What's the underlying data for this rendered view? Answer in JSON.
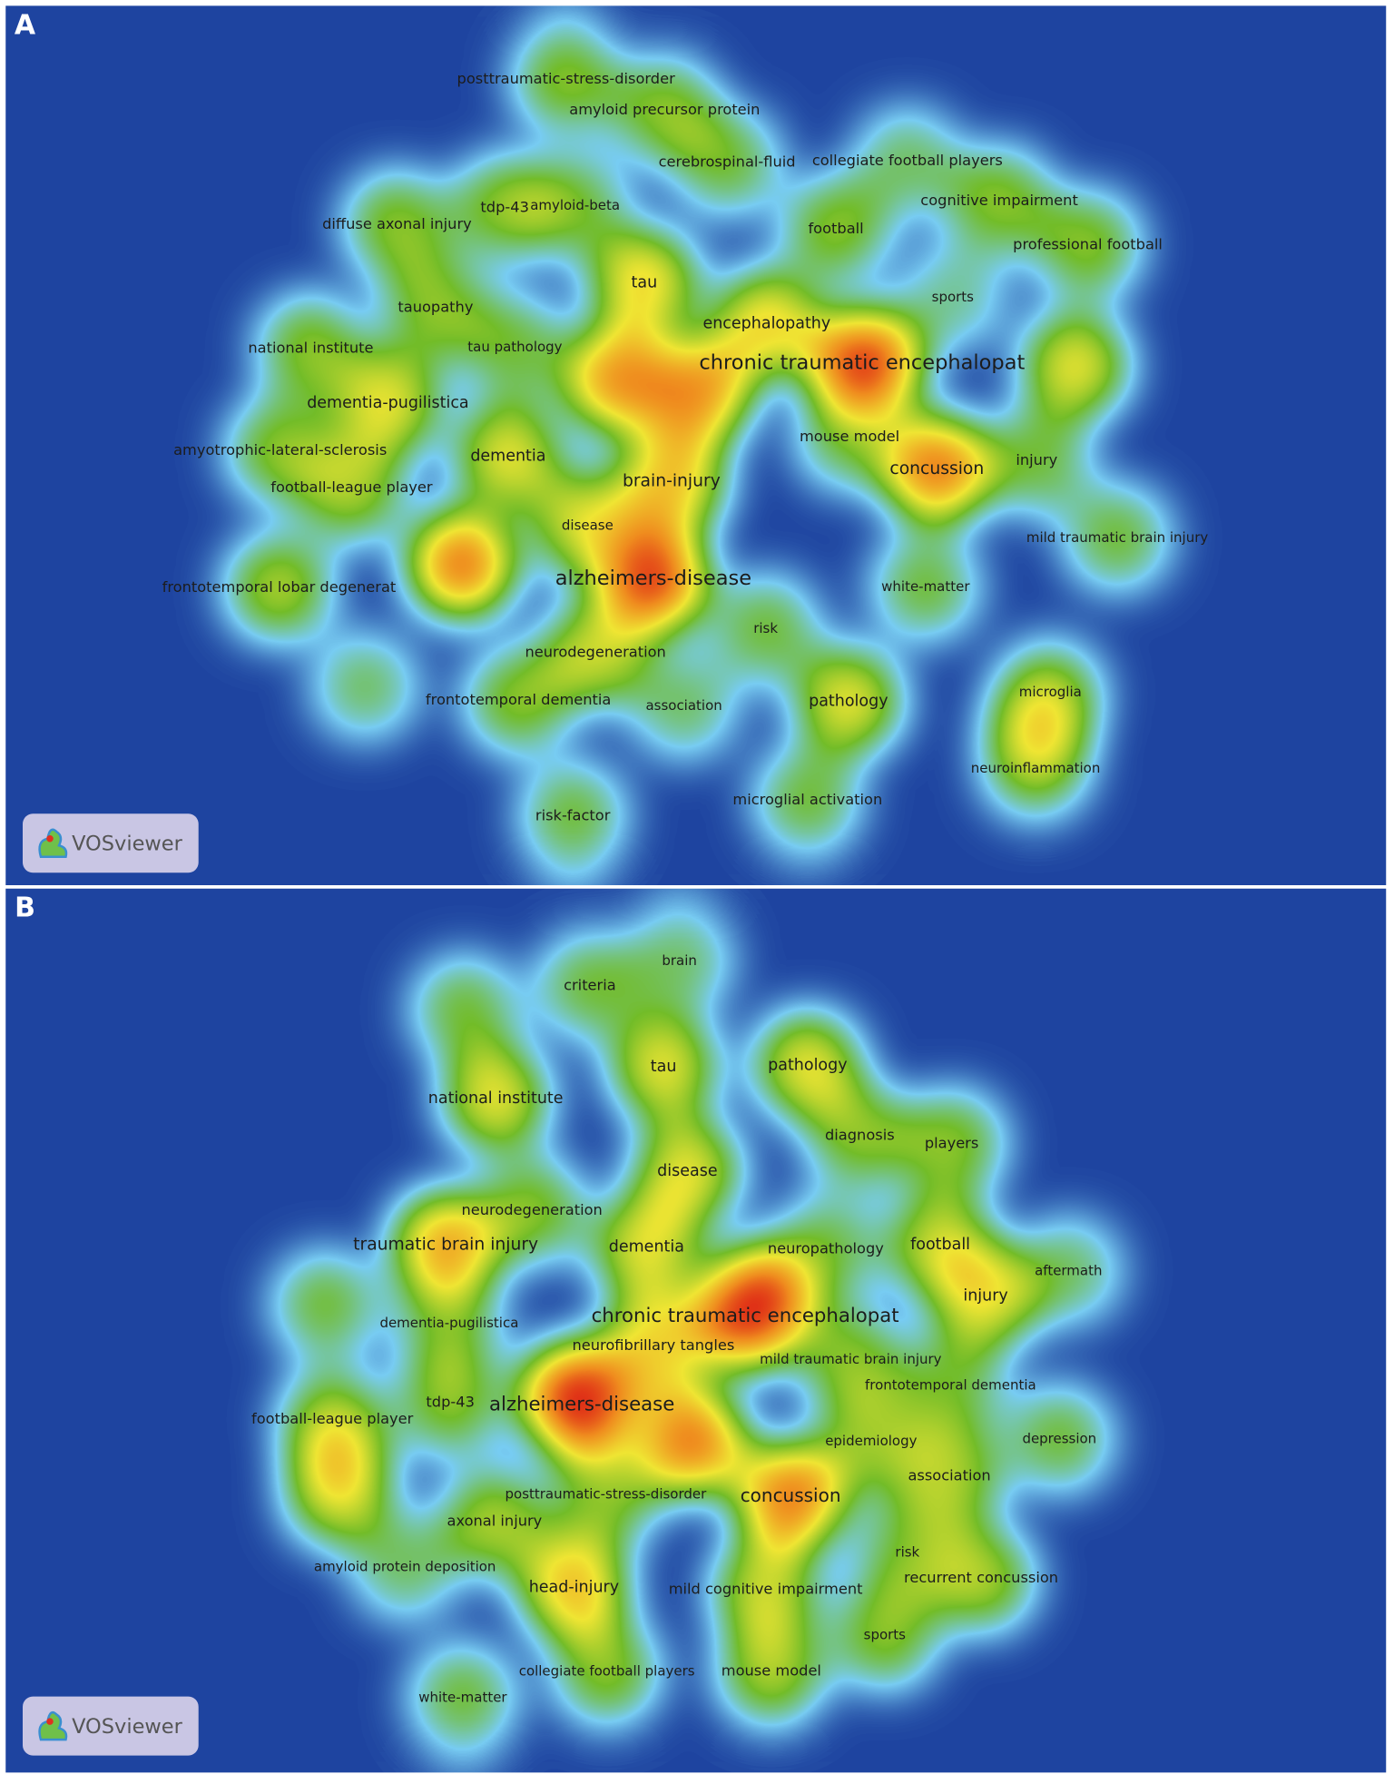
{
  "panels": [
    {
      "label": "A",
      "badge": "VOSviewer",
      "keywords": [
        "posttraumatic-stress-disorder",
        "amyloid precursor protein",
        "cerebrospinal-fluid",
        "collegiate football players",
        "cognitive impairment",
        "tdp-43",
        "amyloid-beta",
        "diffuse axonal injury",
        "football",
        "professional football",
        "tau",
        "sports",
        "tauopathy",
        "encephalopathy",
        "national institute",
        "tau pathology",
        "chronic traumatic encephalopat",
        "dementia-pugilistica",
        "mouse model",
        "amyotrophic-lateral-sclerosis",
        "dementia",
        "concussion",
        "injury",
        "brain-injury",
        "football-league player",
        "disease",
        "mild traumatic brain injury",
        "alzheimers-disease",
        "frontotemporal lobar degenerat",
        "white-matter",
        "risk",
        "neurodegeneration",
        "frontotemporal dementia",
        "association",
        "pathology",
        "microglia",
        "neuroinflammation",
        "risk-factor",
        "microglial activation"
      ]
    },
    {
      "label": "B",
      "badge": "VOSviewer",
      "keywords": [
        "brain",
        "criteria",
        "tau",
        "pathology",
        "national institute",
        "diagnosis",
        "players",
        "disease",
        "neurodegeneration",
        "traumatic brain injury",
        "dementia",
        "neuropathology",
        "football",
        "aftermath",
        "injury",
        "dementia-pugilistica",
        "chronic traumatic encephalopat",
        "neurofibrillary tangles",
        "mild traumatic brain injury",
        "frontotemporal dementia",
        "football-league player",
        "tdp-43",
        "alzheimers-disease",
        "epidemiology",
        "depression",
        "association",
        "posttraumatic-stress-disorder",
        "concussion",
        "axonal injury",
        "risk",
        "amyloid protein deposition",
        "recurrent concussion",
        "head-injury",
        "mild cognitive impairment",
        "sports",
        "collegiate football players",
        "mouse model",
        "white-matter"
      ]
    }
  ]
}
